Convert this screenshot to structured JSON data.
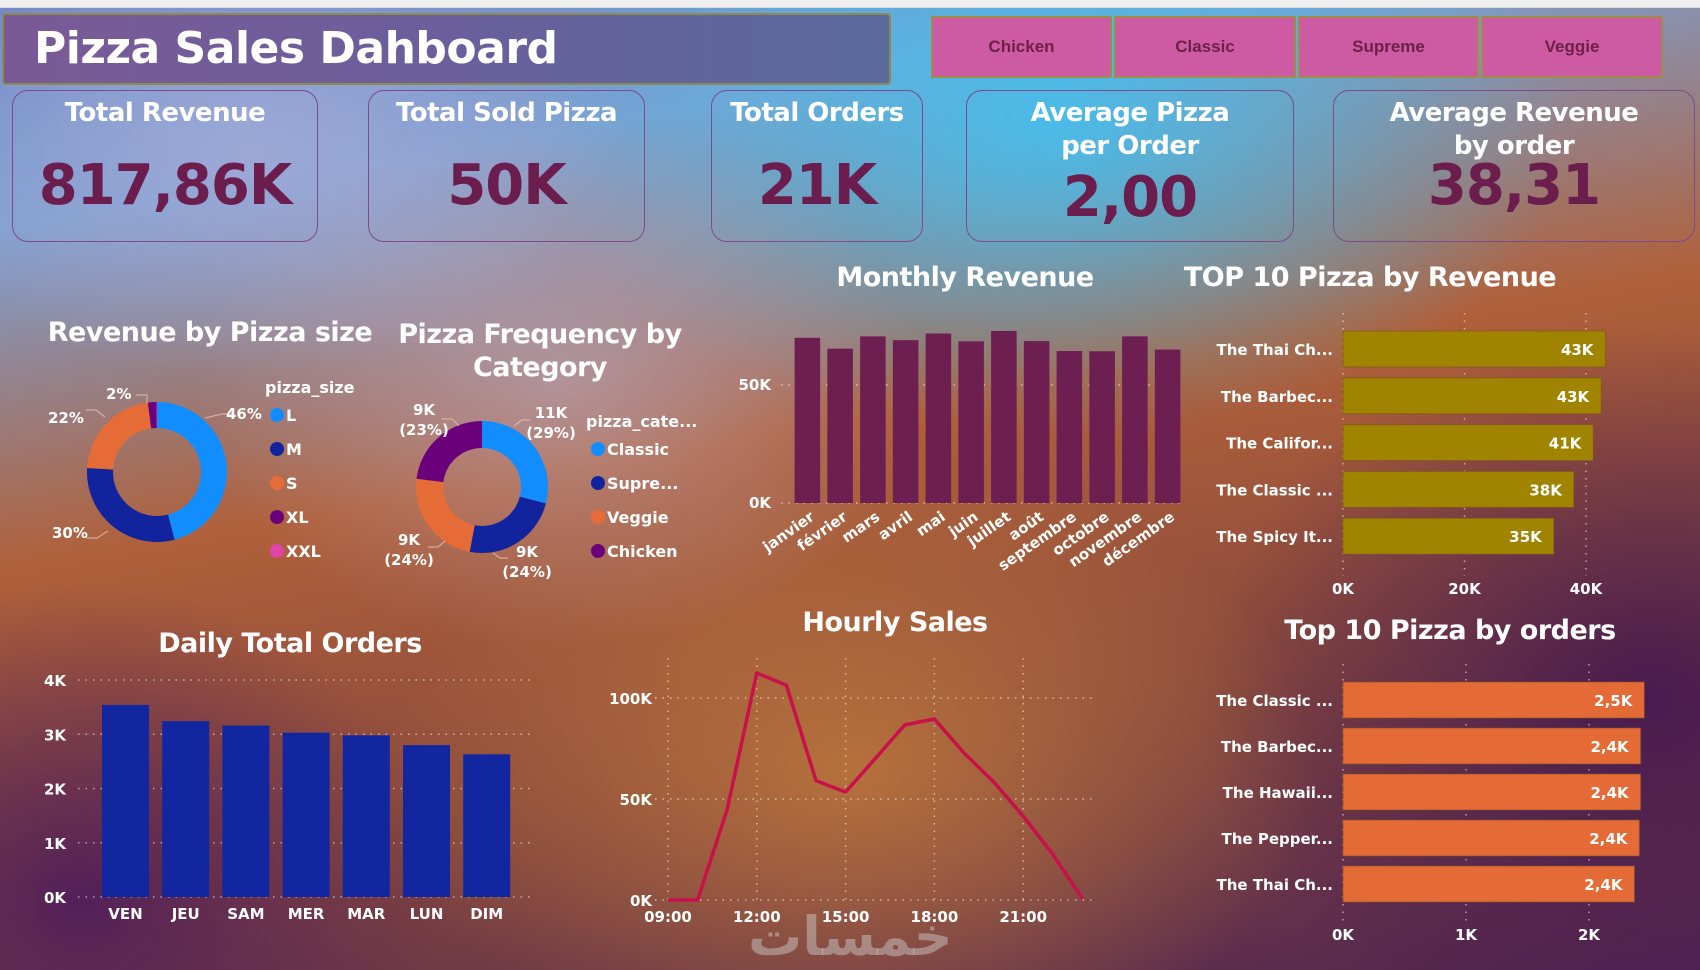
{
  "title": "Pizza Sales Dahboard",
  "slicer": {
    "buttons": [
      "Chicken",
      "Classic",
      "Supreme",
      "Veggie"
    ]
  },
  "kpis": [
    {
      "label": "Total Revenue",
      "value": "817,86K"
    },
    {
      "label": "Total Sold Pizza",
      "value": "50K"
    },
    {
      "label": "Total Orders",
      "value": "21K"
    },
    {
      "label": "Average Pizza per Order",
      "value": "2,00"
    },
    {
      "label": "Average Revenue by order",
      "value": "38,31"
    }
  ],
  "colors": {
    "kpi_value": "#6b1d4e",
    "slicer_bg": "#cd5ba3",
    "monthly_bar": "#6d1f52",
    "daily_bar": "#1226a0",
    "revenue_bar": "#a08400",
    "orders_bar": "#e46a36",
    "hourly_line": "#c8104a"
  },
  "watermark": "خمسات",
  "chart_data": [
    {
      "id": "size",
      "type": "pie",
      "title": "Revenue by Pizza size",
      "legend_title": "pizza_size",
      "legend_position": "right",
      "categories": [
        "L",
        "M",
        "S",
        "XL",
        "XXL"
      ],
      "values": [
        46,
        30,
        22,
        2,
        0.1
      ],
      "labels": [
        "46%",
        "30%",
        "22%",
        "2%",
        ""
      ],
      "colors": [
        "#118dff",
        "#12239e",
        "#e66c37",
        "#6b007b",
        "#e044a7"
      ]
    },
    {
      "id": "category",
      "type": "pie",
      "title": "Pizza Frequency by Category",
      "legend_title": "pizza_cate...",
      "legend_position": "right",
      "categories": [
        "Classic",
        "Supre...",
        "Veggie",
        "Chicken"
      ],
      "values": [
        29,
        24,
        24,
        23
      ],
      "labels": [
        [
          "11K",
          "(29%)"
        ],
        [
          "9K",
          "(24%)"
        ],
        [
          "9K",
          "(24%)"
        ],
        [
          "9K",
          "(23%)"
        ]
      ],
      "colors": [
        "#118dff",
        "#12239e",
        "#e66c37",
        "#6b007b"
      ]
    },
    {
      "id": "monthly",
      "type": "bar",
      "title": "Monthly Revenue",
      "categories": [
        "janvier",
        "février",
        "mars",
        "avril",
        "mai",
        "juin",
        "juillet",
        "août",
        "septembre",
        "octobre",
        "novembre",
        "décembre"
      ],
      "values": [
        70000,
        65400,
        70600,
        69000,
        71800,
        68500,
        72900,
        68600,
        64400,
        64300,
        70600,
        65000
      ],
      "yticks": [
        "0K",
        "50K"
      ],
      "ytick_values": [
        0,
        50000
      ],
      "ylim": [
        0,
        75000
      ],
      "grid": true
    },
    {
      "id": "top_revenue",
      "type": "bar",
      "orientation": "horizontal",
      "title": "TOP 10 Pizza by Revenue",
      "categories": [
        "The Thai Ch...",
        "The Barbec...",
        "The Califor...",
        "The Classic ...",
        "The Spicy It..."
      ],
      "values": [
        43200,
        42500,
        41200,
        38000,
        34700
      ],
      "labels": [
        "43K",
        "43K",
        "41K",
        "38K",
        "35K"
      ],
      "xticks": [
        "0K",
        "20K",
        "40K"
      ],
      "xtick_values": [
        0,
        20000,
        40000
      ],
      "grid": true
    },
    {
      "id": "daily",
      "type": "bar",
      "title": "Daily Total Orders",
      "categories": [
        "VEN",
        "JEU",
        "SAM",
        "MER",
        "MAR",
        "LUN",
        "DIM"
      ],
      "values": [
        3540,
        3240,
        3160,
        3030,
        2980,
        2800,
        2630
      ],
      "yticks": [
        "0K",
        "1K",
        "2K",
        "3K",
        "4K"
      ],
      "ytick_values": [
        0,
        1000,
        2000,
        3000,
        4000
      ],
      "ylim": [
        0,
        4000
      ],
      "grid": true
    },
    {
      "id": "hourly",
      "type": "line",
      "title": "Hourly Sales",
      "x": [
        9,
        10,
        11,
        12,
        13,
        14,
        15,
        16,
        17,
        18,
        19,
        20,
        21,
        22,
        23
      ],
      "values": [
        0,
        0,
        44800,
        112400,
        106300,
        59100,
        53400,
        70000,
        86700,
        89600,
        72800,
        58500,
        41500,
        22600,
        700
      ],
      "xticks": [
        "09:00",
        "12:00",
        "15:00",
        "18:00",
        "21:00"
      ],
      "xtick_values": [
        9,
        12,
        15,
        18,
        21
      ],
      "yticks": [
        "0K",
        "50K",
        "100K"
      ],
      "ytick_values": [
        0,
        50000,
        100000
      ],
      "grid": true
    },
    {
      "id": "top_orders",
      "type": "bar",
      "orientation": "horizontal",
      "title": "Top 10 Pizza by orders",
      "categories": [
        "The Classic ...",
        "The Barbec...",
        "The Hawaii...",
        "The Pepper...",
        "The Thai Ch..."
      ],
      "values": [
        2450,
        2420,
        2420,
        2410,
        2370
      ],
      "labels": [
        "2,5K",
        "2,4K",
        "2,4K",
        "2,4K",
        "2,4K"
      ],
      "xticks": [
        "0K",
        "1K",
        "2K"
      ],
      "xtick_values": [
        0,
        1000,
        2000
      ],
      "grid": true
    }
  ]
}
